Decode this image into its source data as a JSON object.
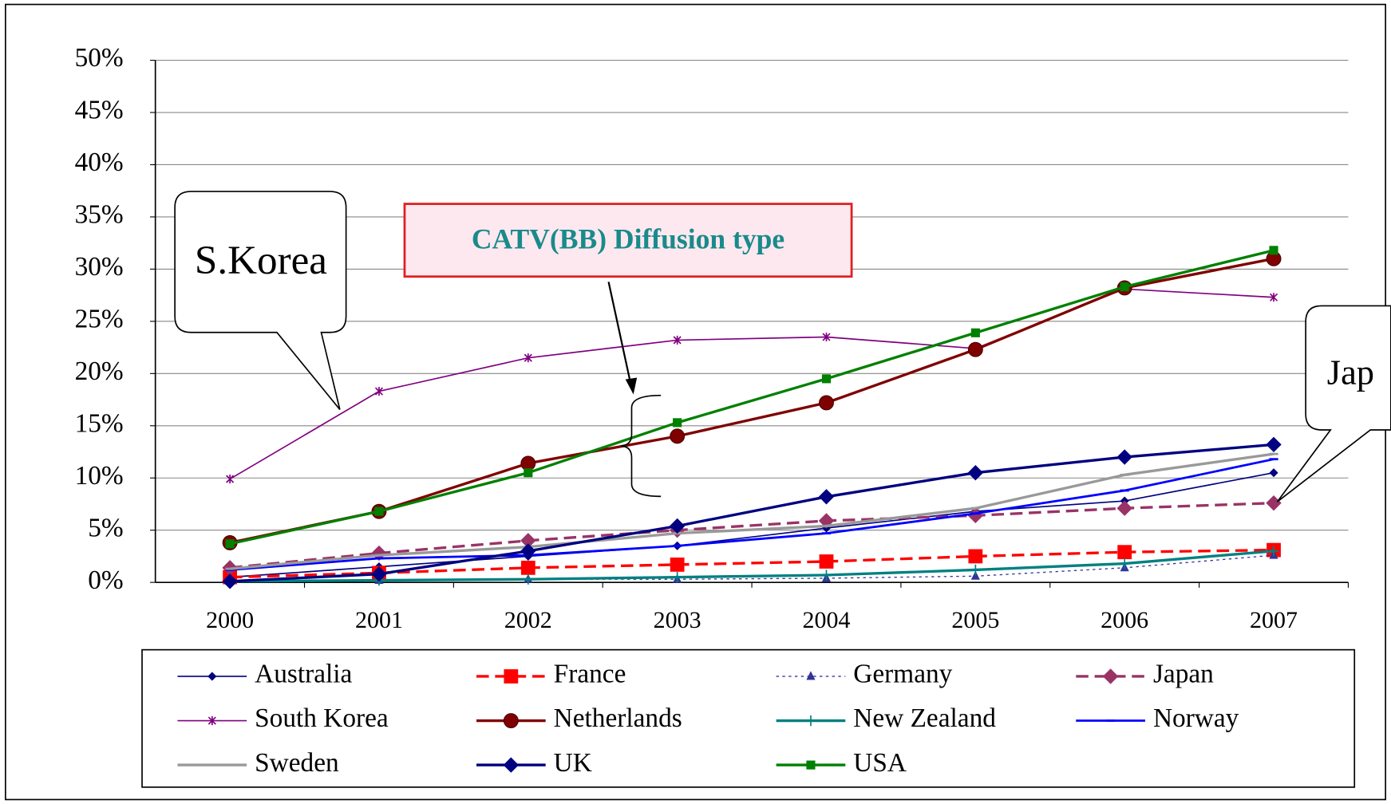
{
  "chart_data": {
    "type": "line",
    "categories": [
      "2000",
      "2001",
      "2002",
      "2003",
      "2004",
      "2005",
      "2006",
      "2007"
    ],
    "ylim": [
      0,
      50
    ],
    "yticks": [
      {
        "value": 0,
        "label": "0%"
      },
      {
        "value": 5,
        "label": "5%"
      },
      {
        "value": 10,
        "label": "10%"
      },
      {
        "value": 15,
        "label": "15%"
      },
      {
        "value": 20,
        "label": "20%"
      },
      {
        "value": 25,
        "label": "25%"
      },
      {
        "value": 30,
        "label": "30%"
      },
      {
        "value": 35,
        "label": "35%"
      },
      {
        "value": 40,
        "label": "40%"
      },
      {
        "value": 45,
        "label": "45%"
      },
      {
        "value": 50,
        "label": "50%"
      }
    ],
    "grid": true,
    "annotations": [
      "S.Korea",
      "CATV(BB) Diffusion type",
      "Jap"
    ],
    "series": [
      {
        "name": "Australia",
        "color": "#000080",
        "marker": "diamond-small",
        "dash": "solid",
        "width": 1.5,
        "values": [
          0.5,
          1.5,
          2.5,
          3.5,
          5.2,
          6.8,
          7.8,
          10.5
        ]
      },
      {
        "name": "France",
        "color": "#ff0000",
        "marker": "square",
        "dash": "dashed",
        "width": 3,
        "values": [
          0.5,
          0.9,
          1.4,
          1.7,
          2.0,
          2.5,
          2.9,
          3.1
        ]
      },
      {
        "name": "Germany",
        "color": "#333399",
        "marker": "triangle",
        "dash": "dotted",
        "width": 1.2,
        "values": [
          0.1,
          0.2,
          0.3,
          0.3,
          0.4,
          0.6,
          1.4,
          2.6
        ]
      },
      {
        "name": "Japan",
        "color": "#993366",
        "marker": "diamond",
        "dash": "dashed",
        "width": 3,
        "values": [
          1.4,
          2.8,
          4.0,
          5.0,
          5.9,
          6.4,
          7.1,
          7.6
        ]
      },
      {
        "name": "South Korea",
        "color": "#800080",
        "marker": "asterisk",
        "dash": "solid",
        "width": 1.5,
        "values": [
          9.9,
          18.3,
          21.5,
          23.2,
          23.5,
          22.4,
          28.1,
          27.3
        ]
      },
      {
        "name": "Netherlands",
        "color": "#800000",
        "marker": "circle",
        "dash": "solid",
        "width": 3,
        "values": [
          3.8,
          6.8,
          11.4,
          14.0,
          17.2,
          22.3,
          28.2,
          31.0
        ]
      },
      {
        "name": "New Zealand",
        "color": "#008080",
        "marker": "plus",
        "dash": "solid",
        "width": 3,
        "values": [
          0.1,
          0.2,
          0.3,
          0.5,
          0.7,
          1.2,
          1.8,
          3.0
        ]
      },
      {
        "name": "Norway",
        "color": "#0000ff",
        "marker": "dash",
        "dash": "solid",
        "width": 2.5,
        "values": [
          1.2,
          2.3,
          2.6,
          3.5,
          4.7,
          6.6,
          8.8,
          11.8
        ]
      },
      {
        "name": "Sweden",
        "color": "#999999",
        "marker": "dash",
        "dash": "solid",
        "width": 3,
        "values": [
          1.3,
          2.6,
          3.4,
          4.7,
          5.4,
          7.1,
          10.3,
          12.3
        ]
      },
      {
        "name": "UK",
        "color": "#000080",
        "marker": "diamond",
        "dash": "solid",
        "width": 3,
        "values": [
          0.1,
          0.8,
          3.0,
          5.4,
          8.2,
          10.5,
          12.0,
          13.2
        ]
      },
      {
        "name": "USA",
        "color": "#008000",
        "marker": "square-small",
        "dash": "solid",
        "width": 3,
        "values": [
          3.7,
          6.8,
          10.5,
          15.3,
          19.5,
          23.9,
          28.3,
          31.8
        ]
      }
    ]
  }
}
